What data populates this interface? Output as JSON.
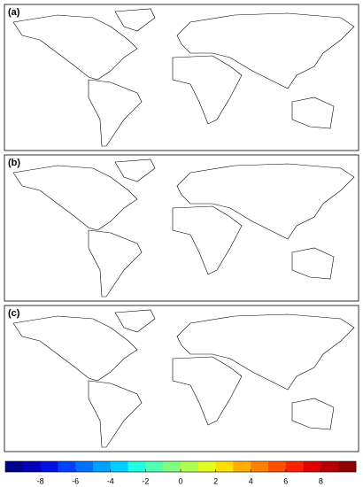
{
  "panels": [
    {
      "label": "(a)"
    },
    {
      "label": "(b)"
    },
    {
      "label": "(c)"
    }
  ],
  "colorbar": {
    "lim": [
      -10,
      10
    ],
    "ticks": [
      -8,
      -6,
      -4,
      -2,
      0,
      2,
      4,
      6,
      8
    ],
    "colors": [
      "#00008f",
      "#0000b8",
      "#0010e0",
      "#0040ff",
      "#0070ff",
      "#00a0ff",
      "#00d0ff",
      "#20ffe0",
      "#50ffb0",
      "#80ff80",
      "#b0ff50",
      "#e0ff20",
      "#ffe000",
      "#ffb000",
      "#ff8000",
      "#ff5000",
      "#ff2000",
      "#e00000",
      "#b80000",
      "#8f0000"
    ]
  }
}
